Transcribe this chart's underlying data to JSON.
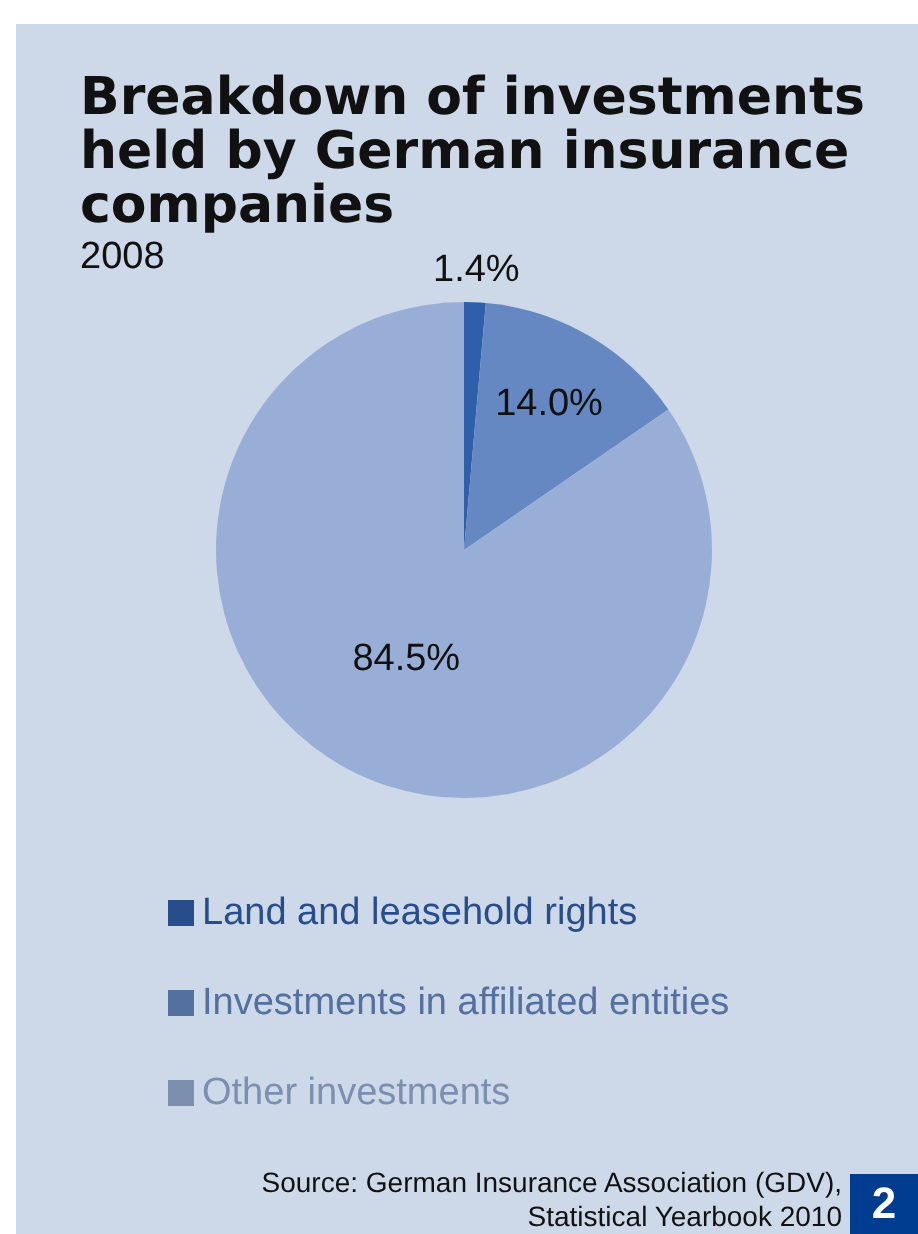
{
  "chart_data": {
    "type": "pie",
    "title": "Breakdown of investments held by German insurance companies",
    "subtitle": "2008",
    "categories": [
      "Land and leasehold rights",
      "Investments in affiliated entities",
      "Other investments"
    ],
    "values": [
      1.4,
      14.0,
      84.5
    ],
    "colors": [
      "#2f5faa",
      "#6688c2",
      "#98aed6"
    ],
    "value_labels": [
      "1.4%",
      "14.0%",
      "84.5%"
    ],
    "legend": "bottom",
    "annotations": [
      "Source: German Insurance Association (GDV), Statistical Yearbook 2010",
      "2"
    ]
  }
}
